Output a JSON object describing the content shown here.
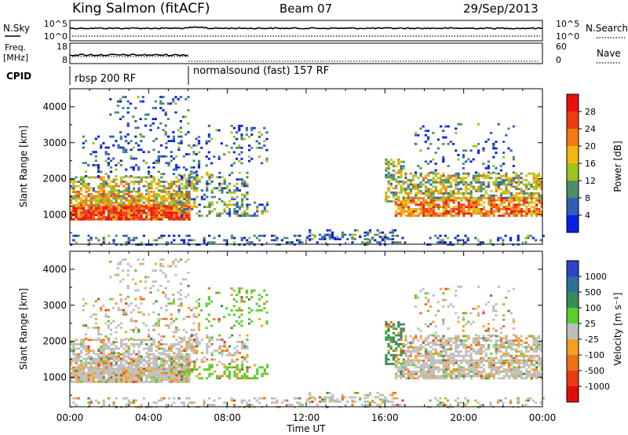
{
  "header": {
    "station": "King Salmon (fitACF)",
    "beam": "Beam 07",
    "date": "29/Sep/2013"
  },
  "nsky_panel": {
    "left_label": "N.Sky",
    "right_label": "N.Search",
    "left_ticks": [
      "10^5",
      "10^0"
    ],
    "right_ticks": [
      "10^5",
      "10^0"
    ]
  },
  "freq_panel": {
    "left_label_top": "Freq.",
    "left_label_unit": "[MHz]",
    "right_label": "Nave",
    "left_ticks": [
      "18",
      "8"
    ],
    "right_ticks": [
      "60",
      "0"
    ]
  },
  "cpid_panel": {
    "label": "CPID",
    "segments": [
      {
        "name": "rbsp 200 RF",
        "start_hour": 0
      },
      {
        "name": "normalsound (fast) 157 RF",
        "start_hour": 6
      }
    ]
  },
  "chart_data": [
    {
      "type": "heatmap",
      "name": "power-panel",
      "ylabel": "Slant Range [km]",
      "xlabel": "Time UT",
      "x_ticks": [
        "00:00",
        "04:00",
        "08:00",
        "12:00",
        "16:00",
        "20:00",
        "00:00"
      ],
      "x_range_hours": [
        0,
        24
      ],
      "y_ticks": [
        1000,
        2000,
        3000,
        4000
      ],
      "y_range_km": [
        180,
        4500
      ],
      "colorbar": {
        "label": "Power [dB]",
        "ticks": [
          "4",
          "8",
          "12",
          "16",
          "20",
          "24",
          "28"
        ],
        "colors": [
          "#0a1fe6",
          "#2f5fb8",
          "#4f8c6a",
          "#9dc21a",
          "#f2b70e",
          "#f27a10",
          "#ee3a12",
          "#e81010"
        ]
      }
    },
    {
      "type": "heatmap",
      "name": "velocity-panel",
      "ylabel": "Slant Range [km]",
      "xlabel": "Time UT",
      "x_ticks": [
        "00:00",
        "04:00",
        "08:00",
        "12:00",
        "16:00",
        "20:00",
        "00:00"
      ],
      "x_range_hours": [
        0,
        24
      ],
      "y_ticks": [
        1000,
        2000,
        3000,
        4000
      ],
      "y_range_km": [
        180,
        4500
      ],
      "colorbar": {
        "label": "Velocity [m s⁻¹]",
        "ticks": [
          "1000",
          "500",
          "100",
          "25",
          "-25",
          "-100",
          "-500",
          "-1000"
        ],
        "colors": [
          "#2b45c8",
          "#2f6f98",
          "#3a8a5a",
          "#5acd2a",
          "#bebebe",
          "#f2a020",
          "#ee7016",
          "#ea3c12",
          "#e00c0c"
        ]
      }
    }
  ]
}
